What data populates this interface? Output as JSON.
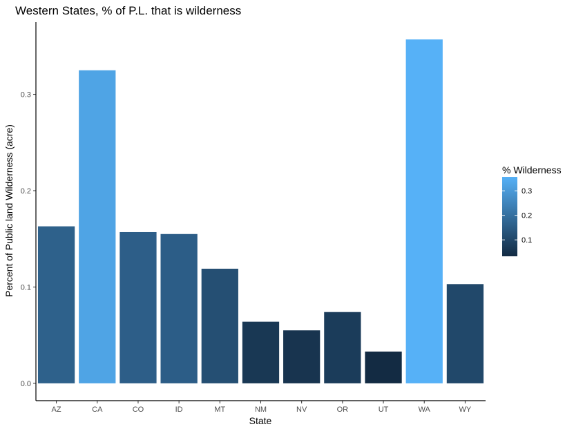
{
  "chart_data": {
    "type": "bar",
    "title": "Western States, % of P.L. that is wilderness",
    "xlabel": "State",
    "ylabel": "Percent of Public land Wilderness (acre)",
    "categories": [
      "AZ",
      "CA",
      "CO",
      "ID",
      "MT",
      "NM",
      "NV",
      "OR",
      "UT",
      "WA",
      "WY"
    ],
    "values": [
      0.163,
      0.325,
      0.157,
      0.155,
      0.119,
      0.064,
      0.055,
      0.074,
      0.033,
      0.357,
      0.103
    ],
    "ylim": [
      -0.018,
      0.375
    ],
    "yticks": [
      0.0,
      0.1,
      0.2,
      0.3
    ],
    "ytick_labels": [
      "0.0",
      "0.1",
      "0.2",
      "0.3"
    ],
    "grid": false,
    "legend": {
      "title": "% Wilderness",
      "placement": "right",
      "type": "colorbar",
      "range": [
        0.033,
        0.357
      ],
      "ticks": [
        0.1,
        0.2,
        0.3
      ],
      "tick_labels": [
        "0.1",
        "0.2",
        "0.3"
      ],
      "color_low": "#132B43",
      "color_high": "#56B1F7"
    }
  }
}
